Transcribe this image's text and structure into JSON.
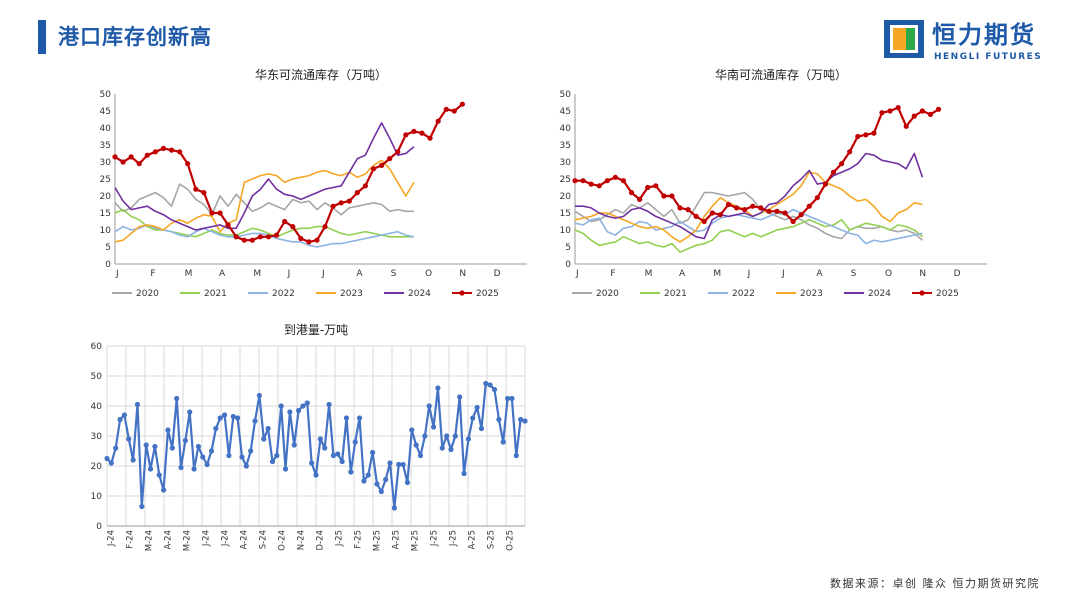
{
  "header": {
    "title": "港口库存创新高"
  },
  "logo": {
    "name": "恒力期货",
    "subtitle": "HENGLI FUTURES",
    "colors": [
      "#1f5aa8",
      "#f5a623",
      "#2aa84a"
    ]
  },
  "footer": {
    "source": "数据来源：卓创 隆众 恒力期货研究院"
  },
  "chart_data": [
    {
      "type": "line",
      "title": "华东可流通库存（万吨）",
      "months": [
        "J",
        "F",
        "M",
        "A",
        "M",
        "J",
        "J",
        "A",
        "S",
        "O",
        "N",
        "D"
      ],
      "ylim": [
        0,
        50
      ],
      "yticks": [
        0,
        5,
        10,
        15,
        20,
        25,
        30,
        35,
        40,
        45,
        50
      ],
      "grid": false,
      "legend": "bottom",
      "series": [
        {
          "name": "2020",
          "color": "#a6a6a6",
          "values": [
            18.0,
            15.5,
            16.5,
            19.0,
            20.0,
            21.0,
            19.5,
            17.0,
            23.5,
            22.0,
            19.0,
            17.5,
            14.5,
            20.0,
            17.0,
            20.5,
            18.0,
            15.5,
            16.5,
            18.0,
            17.0,
            16.0,
            19.0,
            18.0,
            18.5,
            16.0,
            18.0,
            16.5,
            14.5,
            16.5,
            17.0,
            17.5,
            18.0,
            17.5,
            15.5,
            16.0,
            15.5,
            15.5
          ]
        },
        {
          "name": "2021",
          "color": "#92d050",
          "values": [
            15.0,
            16.0,
            14.0,
            13.0,
            11.0,
            10.0,
            10.0,
            9.5,
            9.0,
            8.5,
            8.0,
            9.0,
            10.0,
            9.0,
            8.5,
            8.5,
            9.5,
            10.5,
            10.0,
            9.0,
            8.0,
            9.0,
            10.0,
            10.5,
            10.5,
            11.0,
            11.0,
            10.0,
            9.0,
            8.5,
            9.0,
            9.5,
            9.0,
            8.5,
            8.0,
            8.0,
            8.0,
            8.0
          ]
        },
        {
          "name": "2022",
          "color": "#8db3e2",
          "values": [
            9.5,
            11.0,
            10.0,
            10.5,
            11.5,
            10.5,
            10.0,
            9.5,
            8.5,
            8.0,
            9.5,
            10.5,
            9.5,
            8.5,
            8.0,
            8.0,
            8.5,
            9.0,
            9.0,
            8.5,
            7.5,
            7.0,
            6.5,
            6.5,
            5.5,
            5.0,
            5.5,
            6.0,
            6.0,
            6.5,
            7.0,
            7.5,
            8.0,
            8.5,
            9.0,
            9.5,
            8.5,
            8.0
          ]
        },
        {
          "name": "2023",
          "color": "#f5a623",
          "values": [
            6.5,
            7.0,
            9.0,
            11.0,
            11.5,
            11.0,
            10.0,
            12.0,
            13.0,
            12.0,
            13.5,
            14.5,
            14.0,
            9.5,
            12.0,
            13.0,
            24.0,
            25.0,
            26.0,
            26.5,
            26.0,
            24.0,
            25.0,
            25.5,
            26.0,
            27.0,
            27.5,
            26.5,
            26.0,
            27.0,
            25.5,
            26.5,
            29.0,
            30.5,
            28.0,
            24.0,
            20.0,
            24.0
          ]
        },
        {
          "name": "2024",
          "color": "#7030a0",
          "values": [
            22.5,
            18.5,
            16.0,
            16.5,
            17.0,
            15.5,
            14.5,
            13.0,
            12.0,
            11.0,
            10.0,
            10.5,
            11.0,
            11.5,
            10.5,
            10.5,
            15.0,
            20.0,
            22.0,
            25.0,
            22.0,
            20.5,
            20.0,
            19.0,
            20.0,
            21.0,
            22.0,
            22.5,
            23.0,
            27.0,
            31.0,
            32.0,
            37.0,
            41.5,
            37.0,
            32.0,
            32.5,
            34.5
          ]
        },
        {
          "name": "2025",
          "color": "#c00000",
          "marker": true,
          "values": [
            31.5,
            30.0,
            31.5,
            29.5,
            32.0,
            33.0,
            34.0,
            33.5,
            33.0,
            29.5,
            22.0,
            21.0,
            15.0,
            15.0,
            11.5,
            8.0,
            7.0,
            7.0,
            8.0,
            8.0,
            8.5,
            12.5,
            11.0,
            7.5,
            6.5,
            7.0,
            11.0,
            17.0,
            18.0,
            18.5,
            21.0,
            23.0,
            28.0,
            29.0,
            31.0,
            33.0,
            38.0,
            39.0,
            38.5,
            37.0,
            42.0,
            45.5,
            45.0,
            47.0
          ]
        }
      ]
    },
    {
      "type": "line",
      "title": "华南可流通库存（万吨）",
      "months": [
        "J",
        "F",
        "M",
        "A",
        "M",
        "J",
        "J",
        "A",
        "S",
        "O",
        "N",
        "D"
      ],
      "ylim": [
        0,
        50
      ],
      "yticks": [
        0,
        5,
        10,
        15,
        20,
        25,
        30,
        35,
        40,
        45,
        50
      ],
      "grid": false,
      "legend": "bottom",
      "series": [
        {
          "name": "2020",
          "color": "#a6a6a6",
          "values": [
            15.5,
            14.0,
            12.5,
            13.0,
            14.5,
            16.0,
            15.0,
            17.5,
            16.5,
            18.0,
            16.0,
            14.0,
            16.0,
            12.0,
            13.0,
            17.0,
            21.0,
            21.0,
            20.5,
            20.0,
            20.5,
            21.0,
            19.0,
            16.0,
            15.0,
            14.0,
            13.0,
            14.0,
            13.0,
            11.5,
            10.5,
            9.0,
            8.0,
            7.5,
            10.0,
            11.0,
            10.5,
            10.5,
            11.0,
            10.0,
            9.5,
            10.0,
            9.0,
            7.0
          ]
        },
        {
          "name": "2021",
          "color": "#92d050",
          "values": [
            10.0,
            9.0,
            7.0,
            5.5,
            6.0,
            6.5,
            8.0,
            7.0,
            6.0,
            6.5,
            5.5,
            5.0,
            6.0,
            3.5,
            4.5,
            5.5,
            6.0,
            7.0,
            9.5,
            10.0,
            9.0,
            8.0,
            9.0,
            8.0,
            9.0,
            10.0,
            10.5,
            11.0,
            12.0,
            13.0,
            12.0,
            11.0,
            11.5,
            13.0,
            10.0,
            11.0,
            12.0,
            11.5,
            11.0,
            10.0,
            11.5,
            11.0,
            10.0,
            8.0
          ]
        },
        {
          "name": "2022",
          "color": "#8db3e2",
          "values": [
            12.0,
            11.5,
            13.0,
            13.5,
            9.5,
            8.5,
            10.5,
            11.0,
            12.5,
            12.0,
            10.0,
            10.5,
            11.0,
            12.5,
            11.0,
            9.5,
            10.0,
            12.0,
            13.5,
            14.0,
            14.5,
            14.0,
            13.5,
            13.0,
            14.0,
            15.0,
            14.5,
            16.0,
            15.0,
            14.0,
            13.0,
            12.0,
            11.0,
            10.0,
            9.0,
            8.5,
            6.0,
            7.0,
            6.5,
            7.0,
            7.5,
            8.0,
            8.5,
            9.0
          ]
        },
        {
          "name": "2023",
          "color": "#f5a623",
          "values": [
            13.0,
            13.5,
            14.0,
            15.0,
            15.0,
            14.0,
            13.0,
            12.0,
            11.0,
            10.5,
            11.0,
            10.0,
            8.0,
            6.5,
            8.0,
            10.0,
            14.0,
            17.0,
            19.5,
            18.0,
            17.0,
            16.0,
            14.0,
            15.0,
            16.0,
            17.5,
            19.0,
            20.5,
            23.0,
            27.0,
            26.5,
            24.0,
            23.0,
            22.0,
            20.0,
            18.5,
            19.0,
            17.0,
            14.0,
            12.5,
            15.0,
            16.0,
            18.0,
            17.5
          ]
        },
        {
          "name": "2024",
          "color": "#7030a0",
          "values": [
            17.0,
            17.0,
            16.5,
            15.0,
            14.0,
            13.5,
            14.0,
            16.0,
            16.5,
            15.5,
            14.0,
            13.0,
            12.0,
            11.0,
            9.5,
            8.0,
            7.5,
            13.0,
            14.5,
            14.0,
            14.5,
            15.0,
            14.0,
            15.0,
            17.5,
            18.0,
            20.0,
            23.0,
            25.0,
            27.5,
            23.5,
            24.0,
            26.0,
            27.0,
            28.0,
            29.5,
            32.5,
            32.0,
            30.5,
            30.0,
            29.5,
            28.0,
            32.5,
            25.5
          ]
        },
        {
          "name": "2025",
          "color": "#c00000",
          "marker": true,
          "values": [
            24.5,
            24.5,
            23.5,
            23.0,
            24.5,
            25.5,
            24.5,
            21.0,
            19.0,
            22.5,
            23.0,
            20.0,
            20.0,
            16.5,
            16.0,
            14.0,
            12.5,
            15.0,
            14.5,
            17.5,
            16.5,
            16.0,
            17.0,
            16.5,
            15.5,
            15.5,
            15.0,
            12.5,
            14.5,
            17.0,
            19.5,
            23.5,
            27.0,
            29.5,
            33.0,
            37.5,
            38.0,
            38.5,
            44.5,
            45.0,
            46.0,
            40.5,
            43.5,
            45.0,
            44.0,
            45.5
          ]
        }
      ]
    },
    {
      "type": "line",
      "title": "到港量-万吨",
      "ylim": [
        0,
        60
      ],
      "yticks": [
        0,
        10,
        20,
        30,
        40,
        50,
        60
      ],
      "grid": true,
      "xticks": [
        "J-24",
        "F-24",
        "M-24",
        "A-24",
        "M-24",
        "J-24",
        "J-24",
        "A-24",
        "S-24",
        "O-24",
        "N-24",
        "D-24",
        "J-25",
        "F-25",
        "M-25",
        "A-25",
        "M-25",
        "J-25",
        "J-25",
        "A-25",
        "S-25",
        "O-25"
      ],
      "series": [
        {
          "name": "",
          "color": "#4472c4",
          "marker": true,
          "values": [
            22.5,
            21.0,
            26.0,
            35.5,
            37.0,
            29.0,
            22.0,
            40.5,
            6.5,
            27.0,
            19.0,
            26.5,
            17.0,
            12.0,
            32.0,
            26.0,
            42.5,
            19.5,
            28.5,
            38.0,
            19.0,
            26.5,
            23.0,
            20.5,
            25.0,
            32.5,
            36.0,
            37.0,
            23.5,
            36.5,
            36.0,
            23.0,
            20.0,
            25.0,
            35.0,
            43.5,
            29.0,
            32.5,
            21.5,
            23.5,
            40.0,
            19.0,
            38.0,
            27.0,
            38.5,
            40.0,
            41.0,
            21.0,
            17.0,
            29.0,
            26.0,
            40.5,
            23.5,
            24.0,
            21.5,
            36.0,
            18.0,
            28.0,
            36.0,
            15.0,
            17.0,
            24.5,
            14.0,
            11.5,
            15.5,
            21.0,
            6.0,
            20.5,
            20.5,
            14.5,
            32.0,
            27.0,
            23.5,
            30.0,
            40.0,
            33.0,
            46.0,
            26.0,
            30.0,
            25.5,
            30.0,
            43.0,
            17.5,
            29.0,
            36.0,
            39.5,
            32.5,
            47.5,
            47.0,
            45.5,
            35.5,
            28.0,
            42.5,
            42.5,
            23.5,
            35.5,
            35.0
          ]
        }
      ]
    }
  ]
}
